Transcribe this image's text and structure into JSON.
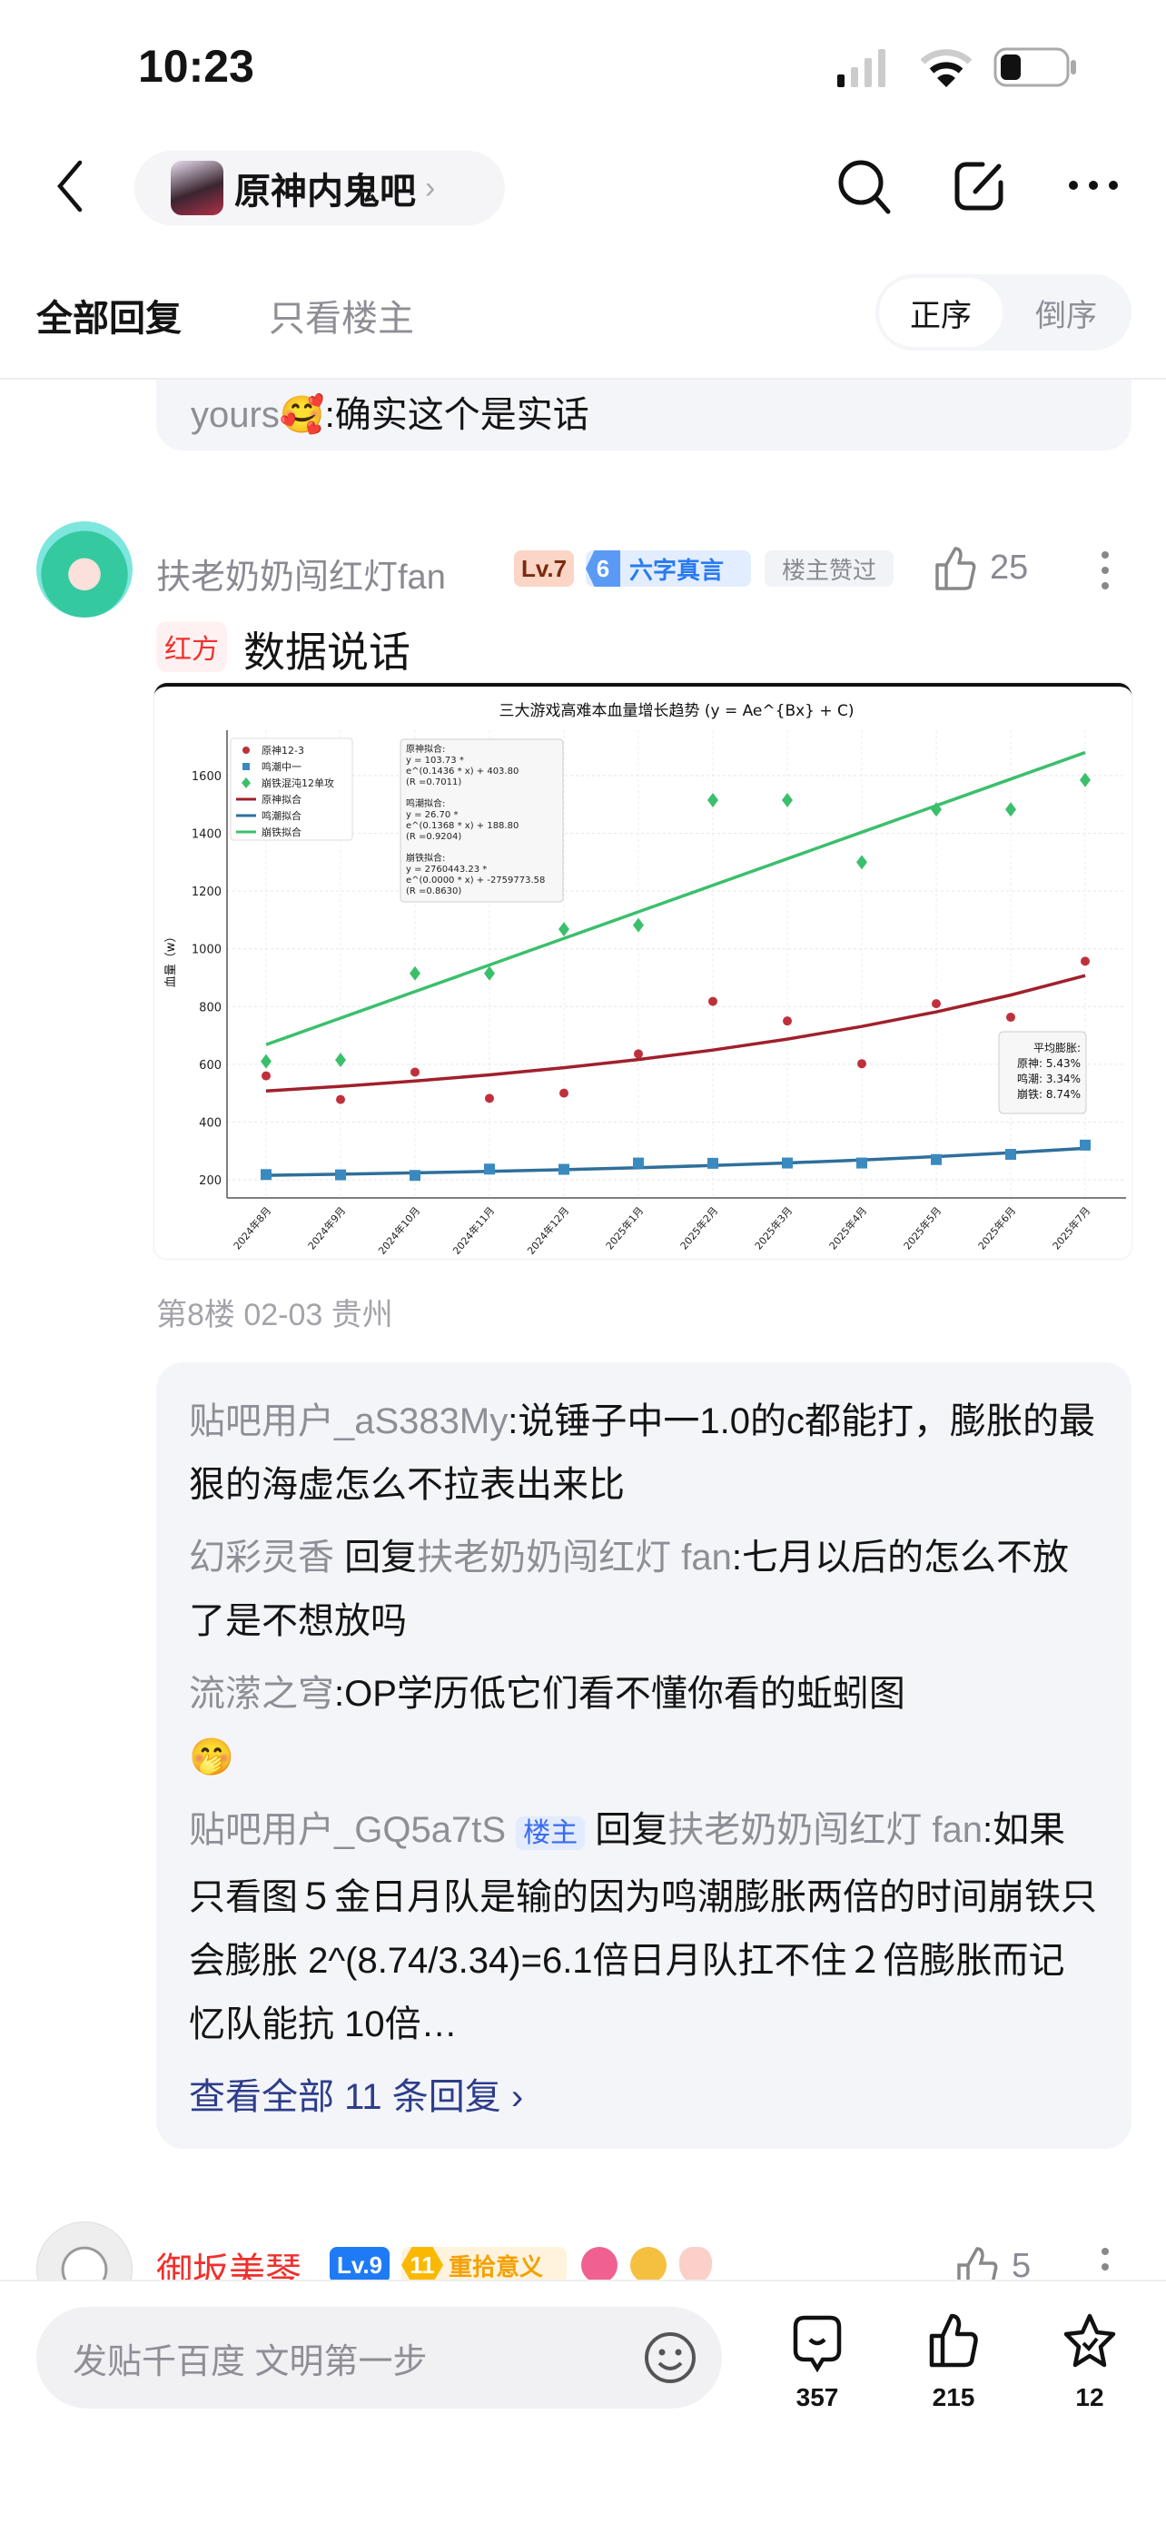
{
  "status": {
    "time": "10:23"
  },
  "nav": {
    "forum_name": "原神内鬼吧",
    "chevron": "›"
  },
  "tabs": {
    "all": "全部回复",
    "op_only": "只看楼主"
  },
  "sort": {
    "asc": "正序",
    "desc": "倒序"
  },
  "previous_reply": {
    "user": "yours",
    "emoji": "🥰",
    "text": ":确实这个是实话"
  },
  "post": {
    "username": "扶老奶奶闯红灯fan",
    "level": "Lv.7",
    "honor_num": "6",
    "honor": "六字真言",
    "op_liked": "楼主赞过",
    "likes": "25",
    "tag": "红方",
    "text": "数据说话",
    "meta": "第8楼 02-03 贵州"
  },
  "replies": [
    {
      "user": "贴吧用户_aS383My",
      "text": ":说锤子中一1.0的c都能打，膨胀的最狠的海虚怎么不拉表出来比"
    },
    {
      "user": "幻彩灵香",
      "reply_word": "回复",
      "target": "扶老奶奶闯红灯 fan",
      "text": ":七月以后的怎么不放了是不想放吗"
    },
    {
      "user": "流潆之穹",
      "text": ":OP学历低它们看不懂你看的蚯蚓图",
      "emoji": "🤭"
    },
    {
      "user": "贴吧用户_GQ5a7tS",
      "op_badge": "楼主",
      "reply_word": "回复",
      "target": "扶老奶奶闯红灯 fan",
      "text": ":如果只看图５金日月队是输的因为鸣潮膨胀两倍的时间崩铁只会膨胀 2^(8.74/3.34)=6.1倍日月队扛不住２倍膨胀而记忆队能抗 10倍…"
    }
  ],
  "view_all": "查看全部 11 条回复 ›",
  "next_post": {
    "username": "御坂美琴",
    "level": "Lv.9",
    "honor_num": "11",
    "honor": "重拾意义",
    "likes": "5"
  },
  "bottom": {
    "placeholder": "发贴千百度 文明第一步",
    "comments": "357",
    "likes": "215",
    "favorites": "12"
  },
  "colors": {
    "accent_blue": "#2d3d8a",
    "username_red": "#f0302c",
    "genshin": "#c0303c",
    "wuwa": "#3a8ac0",
    "hsr": "#3cbf6c"
  },
  "chart_data": {
    "type": "scatter",
    "title": "三大游戏高难本血量增长趋势 (y = Ae^{Bx} + C)",
    "xlabel": "",
    "ylabel": "血量（w）",
    "categories": [
      "2024年8月",
      "2024年9月",
      "2024年10月",
      "2024年11月",
      "2024年12月",
      "2025年1月",
      "2025年2月",
      "2025年3月",
      "2025年4月",
      "2025年5月",
      "2025年6月",
      "2025年7月"
    ],
    "yticks": [
      200,
      400,
      600,
      800,
      1000,
      1200,
      1400,
      1600
    ],
    "ylim": [
      130,
      1750
    ],
    "grid": true,
    "legend_placement": "top-left",
    "series": [
      {
        "name": "原神12-3",
        "marker": "circle",
        "color": "#c0303c",
        "values": [
          560,
          478,
          573,
          482,
          500,
          636,
          818,
          750,
          602,
          810,
          763,
          957
        ]
      },
      {
        "name": "鸣潮中一",
        "marker": "square",
        "color": "#3a8ac0",
        "values": [
          218,
          217,
          215,
          237,
          236,
          258,
          257,
          258,
          258,
          270,
          288,
          320
        ]
      },
      {
        "name": "崩铁混沌12单攻",
        "marker": "diamond",
        "color": "#3cbf6c",
        "values": [
          610,
          615,
          915,
          915,
          1068,
          1082,
          1515,
          1515,
          1300,
          1483,
          1483,
          1585
        ]
      }
    ],
    "fits": [
      {
        "name": "原神拟合",
        "color": "#a0202c",
        "A": 103.73,
        "B": 0.1436,
        "C": 403.8
      },
      {
        "name": "鸣潮拟合",
        "color": "#2f6f9a",
        "A": 26.7,
        "B": 0.1368,
        "C": 188.8
      },
      {
        "name": "崩铁拟合",
        "color": "#3cbf6c",
        "values": [
          668,
          760,
          852,
          944,
          1036,
          1128,
          1220,
          1312,
          1404,
          1496,
          1588,
          1680
        ]
      }
    ],
    "fit_annotation": [
      "原神拟合:",
      "y = 103.73 *",
      "e^(0.1436 * x) + 403.80",
      "(R  =0.7011)",
      "",
      "鸣潮拟合:",
      "y = 26.70 *",
      "e^(0.1368 * x) + 188.80",
      "(R  =0.9204)",
      "",
      "崩铁拟合:",
      "y = 2760443.23 *",
      "e^(0.0000 * x) + -2759773.58",
      "(R  =0.8630)"
    ],
    "inflation_annotation": [
      "平均膨胀:",
      "原神: 5.43%",
      "鸣潮: 3.34%",
      "崩铁: 8.74%"
    ]
  }
}
